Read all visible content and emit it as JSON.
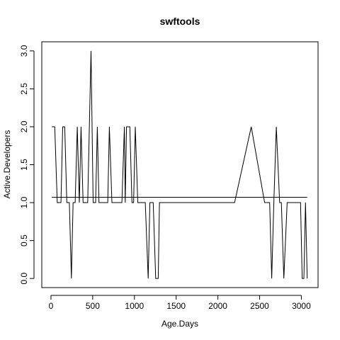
{
  "chart_data": {
    "type": "line",
    "title": "swftools",
    "xlabel": "Age.Days",
    "ylabel": "Active.Developers",
    "xlim": [
      -110,
      3200
    ],
    "ylim": [
      -0.12,
      3.12
    ],
    "x_ticks": [
      0,
      500,
      1000,
      1500,
      2000,
      2500,
      3000
    ],
    "y_ticks": [
      0.0,
      0.5,
      1.0,
      1.5,
      2.0,
      2.5,
      3.0
    ],
    "x_tick_labels": [
      "0",
      "500",
      "1000",
      "1500",
      "2000",
      "2500",
      "3000"
    ],
    "y_tick_labels": [
      "0.0",
      "0.5",
      "1.0",
      "1.5",
      "2.0",
      "2.5",
      "3.0"
    ],
    "grid": false,
    "legend": "none",
    "series": [
      {
        "x": [
          10,
          45,
          75,
          120,
          140,
          165,
          190,
          220,
          245,
          265,
          290,
          315,
          340,
          360,
          385,
          440,
          480,
          505,
          535,
          555,
          575,
          600,
          640,
          680,
          700,
          730,
          750,
          800,
          850,
          880,
          890,
          905,
          920,
          945,
          970,
          990,
          1010,
          1040,
          1060,
          1090,
          1130,
          1165,
          1185,
          1225,
          1255,
          1285,
          1300,
          1320,
          1345,
          2200,
          2400,
          2560,
          2590,
          2620,
          2645,
          2670,
          2700,
          2740,
          2760,
          2790,
          2830,
          2990,
          3010,
          3030,
          3050,
          3070
        ],
        "y": [
          2,
          2,
          1,
          1,
          2,
          2,
          1,
          1,
          0,
          1,
          1,
          2,
          1,
          2,
          1,
          1,
          3,
          1,
          1,
          2,
          1,
          1,
          1,
          1,
          2,
          1,
          1,
          1,
          1,
          2,
          1,
          2,
          2,
          2,
          1,
          1,
          2,
          1,
          1,
          1,
          1,
          0,
          1,
          1,
          0,
          0,
          1,
          1,
          1,
          1,
          2,
          1,
          1,
          1,
          0,
          1,
          2,
          1,
          1,
          0,
          1,
          1,
          0,
          0,
          1,
          0
        ]
      },
      {
        "x": [
          10,
          3070
        ],
        "y": [
          1.07,
          1.07
        ]
      }
    ]
  }
}
